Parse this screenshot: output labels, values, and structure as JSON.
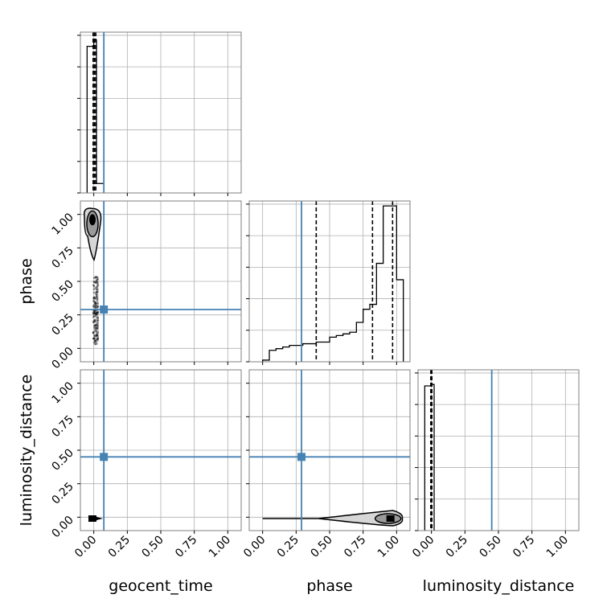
{
  "colors": {
    "truth": "#4682b4",
    "frame": "#7f7f7f",
    "grid": "#b0b0b0",
    "hist": "#000000",
    "contour_fill_inner": "#9a9a9a",
    "contour_fill_outer": "#d6d6d6"
  },
  "chart_data": {
    "type": "corner",
    "parameters": [
      "geocent_time",
      "phase",
      "luminosity_distance"
    ],
    "tick_values": [
      0.0,
      0.25,
      0.5,
      0.75,
      1.0
    ],
    "tick_labels": [
      "0.00",
      "0.25",
      "0.50",
      "0.75",
      "1.00"
    ],
    "axis_range": [
      -0.1,
      1.1
    ],
    "grid": true,
    "truths": {
      "geocent_time": 0.075,
      "phase": 0.29,
      "luminosity_distance": 0.45
    },
    "histograms": {
      "geocent_time": {
        "bin_edges": [
          -0.05,
          0.0,
          0.02,
          0.075
        ],
        "counts": [
          0.93,
          0.97,
          0.06
        ],
        "ylim": [
          0,
          1.02
        ],
        "quantile_lines": [
          -0.005,
          0.005,
          0.015
        ]
      },
      "phase": {
        "bin_edges": [
          0.0,
          0.05,
          0.1,
          0.15,
          0.2,
          0.25,
          0.3,
          0.35,
          0.4,
          0.45,
          0.5,
          0.55,
          0.6,
          0.65,
          0.7,
          0.75,
          0.8,
          0.85,
          0.9,
          0.95,
          1.0,
          1.05
        ],
        "counts": [
          0.01,
          0.07,
          0.08,
          0.09,
          0.1,
          0.1,
          0.11,
          0.11,
          0.12,
          0.12,
          0.15,
          0.16,
          0.17,
          0.18,
          0.24,
          0.32,
          0.35,
          0.6,
          0.95,
          0.95,
          0.5
        ],
        "ylim": [
          0,
          0.98
        ],
        "quantile_lines": [
          0.4,
          0.82,
          0.97
        ]
      },
      "luminosity_distance": {
        "bin_edges": [
          -0.05,
          0.0,
          0.02
        ],
        "counts": [
          0.99,
          1.0
        ],
        "ylim": [
          0,
          1.1
        ],
        "quantile_lines": [
          -0.005,
          0.003
        ]
      }
    },
    "density_2d": {
      "phase_vs_geocent_time": {
        "x_center": -0.01,
        "samples_y_range": [
          0.03,
          1.0
        ],
        "mode": [
          -0.01,
          0.96
        ]
      },
      "luminosity_distance_vs_geocent_time": {
        "mode": [
          -0.01,
          -0.01
        ]
      },
      "luminosity_distance_vs_phase": {
        "x_range": [
          0.0,
          1.03
        ],
        "mode": [
          0.96,
          -0.01
        ]
      }
    }
  }
}
